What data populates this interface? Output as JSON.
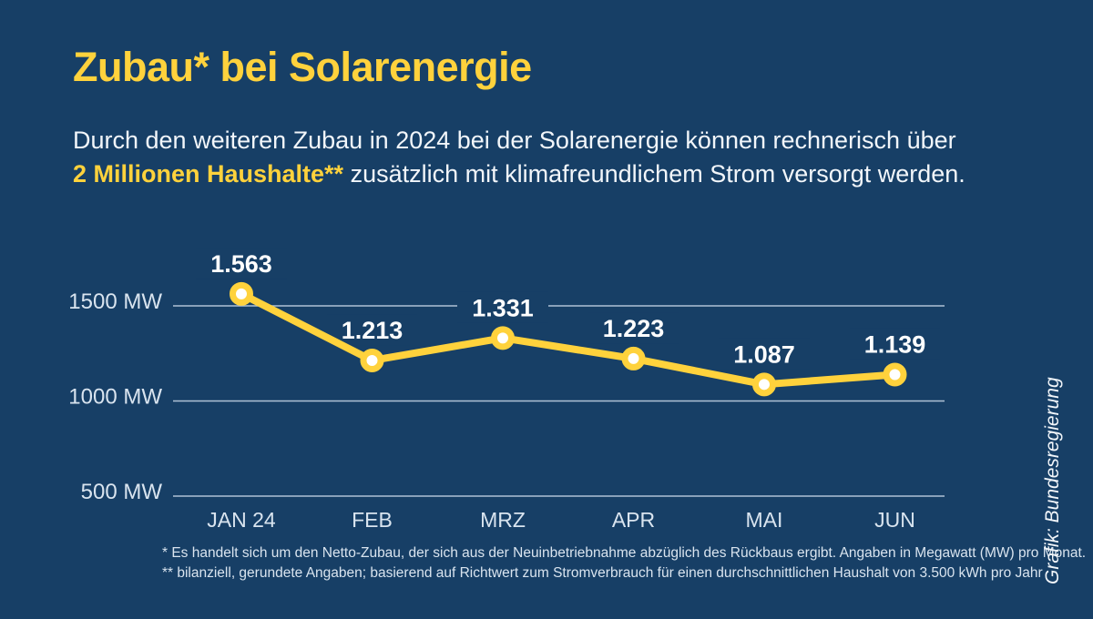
{
  "colors": {
    "background": "#173F66",
    "accent_yellow": "#FFD23C",
    "text_light": "#F2F6FA",
    "text_muted": "#D9E4EF",
    "gridline": "#AFC2D5",
    "marker_fill": "#FFFFFF"
  },
  "title": "Zubau* bei Solarenergie",
  "subtitle": {
    "line1": "Durch den weiteren Zubau in 2024 bei der Solarenergie können rechnerisch über",
    "highlight": "2 Millionen Haushalte**",
    "line2_rest": " zusätzlich mit klimafreundlichem Strom versorgt werden."
  },
  "chart_data": {
    "type": "line",
    "categories": [
      "JAN 24",
      "FEB",
      "MRZ",
      "APR",
      "MAI",
      "JUN"
    ],
    "values": [
      1563,
      1213,
      1331,
      1223,
      1087,
      1139
    ],
    "value_labels": [
      "1.563",
      "1.213",
      "1.331",
      "1.223",
      "1.087",
      "1.139"
    ],
    "unit": "MW",
    "title": "Zubau* bei Solarenergie",
    "xlabel": "",
    "ylabel": "",
    "y_ticks": [
      {
        "value": 1500,
        "label": "1500 MW"
      },
      {
        "value": 1000,
        "label": "1000 MW"
      },
      {
        "value": 500,
        "label": "500 MW"
      }
    ],
    "ylim": [
      500,
      1650
    ],
    "grid": true,
    "legend": "none",
    "line_color": "#FFD23C",
    "marker_fill": "#FFFFFF",
    "data_label_color": "#FFFFFF"
  },
  "footnotes": [
    "* Es handelt sich um den Netto-Zubau, der sich aus der Neuinbetriebnahme abzüglich des Rückbaus ergibt. Angaben in Megawatt (MW) pro Monat.",
    "** bilanziell, gerundete Angaben; basierend auf Richtwert zum Stromverbrauch für einen durchschnittlichen Haushalt von 3.500 kWh pro Jahr"
  ],
  "credit": "Grafik: Bundesregierung"
}
